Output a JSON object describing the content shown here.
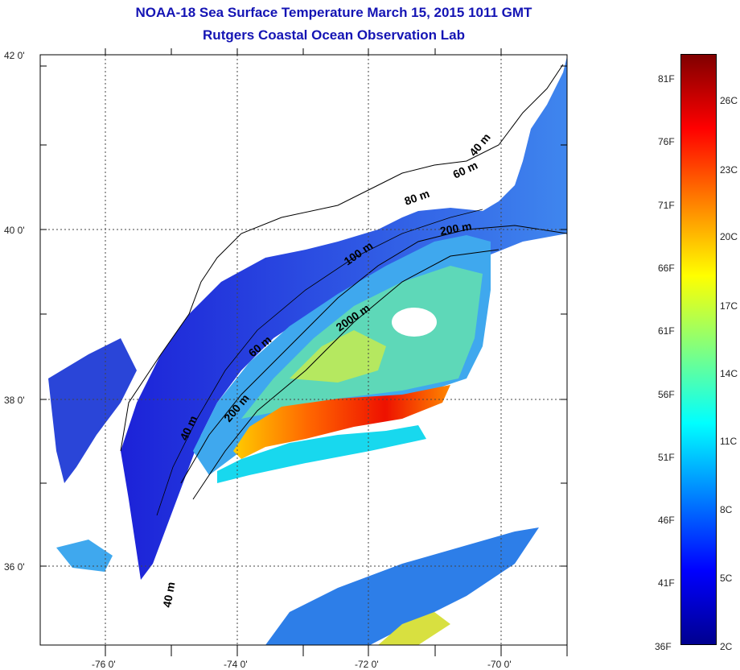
{
  "header": {
    "title": "NOAA-18 Sea Surface Temperature March 15, 2015 1011 GMT",
    "subtitle": "Rutgers Coastal Ocean Observation Lab"
  },
  "map": {
    "lat_labels": [
      "42 0'",
      "40 0'",
      "38 0'",
      "36 0'"
    ],
    "lon_labels": [
      "-76 0'",
      "-74 0'",
      "-72 0'",
      "-70 0'"
    ],
    "contour_labels": [
      "40 m",
      "60 m",
      "80 m",
      "200 m",
      "100 m",
      "2000 m",
      "60 m",
      "200 m",
      "40 m",
      "40 m"
    ]
  },
  "colorbar": {
    "fahrenheit": [
      "81F",
      "76F",
      "71F",
      "66F",
      "61F",
      "56F",
      "51F",
      "46F",
      "41F",
      "36F"
    ],
    "celsius": [
      "26C",
      "23C",
      "20C",
      "17C",
      "14C",
      "11C",
      "8C",
      "5C",
      "2C"
    ],
    "colors": [
      "#00008f",
      "#0000ff",
      "#0080ff",
      "#00ffff",
      "#80ff80",
      "#ffff00",
      "#ff8000",
      "#ff0000",
      "#800000"
    ]
  },
  "colors": {
    "title": "#1414b4",
    "land": "#ffffff",
    "coast": "#000000"
  }
}
